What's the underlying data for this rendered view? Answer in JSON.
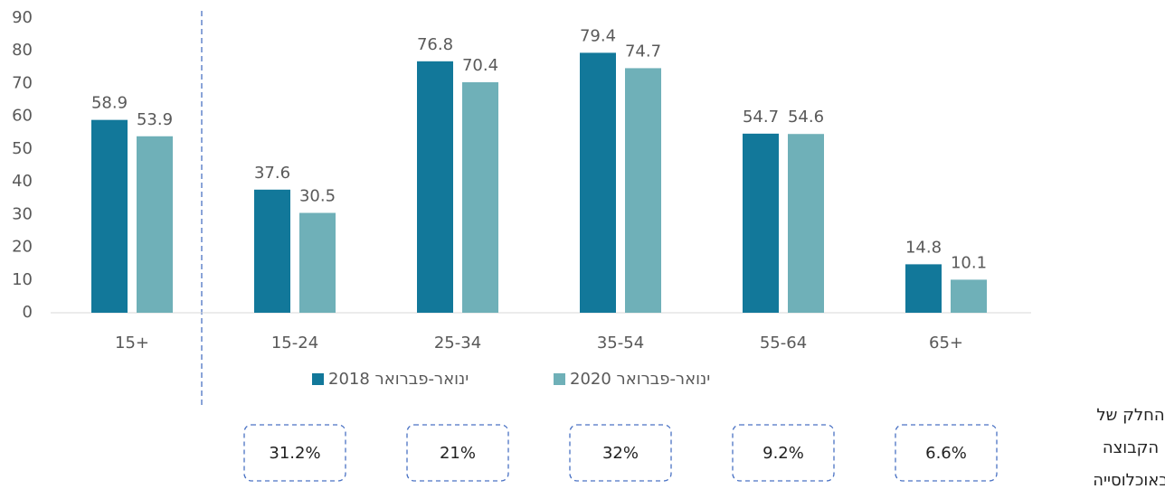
{
  "chart_data": {
    "type": "bar",
    "categories": [
      "15+",
      "15-24",
      "25-34",
      "35-54",
      "55-64",
      "65+"
    ],
    "series": [
      {
        "name": "ינואר-פברואר 2018",
        "color": "#12789a",
        "values": [
          58.9,
          37.6,
          76.8,
          79.4,
          54.7,
          14.8
        ]
      },
      {
        "name": "ינואר-פברואר 2020",
        "color": "#6fb0b8",
        "values": [
          53.9,
          30.5,
          70.4,
          74.7,
          54.6,
          10.1
        ]
      }
    ],
    "ylim": [
      0,
      90
    ],
    "yticks": [
      0,
      10,
      20,
      30,
      40,
      50,
      60,
      70,
      80,
      90
    ],
    "grid": false,
    "legend": "bottom",
    "population_share": {
      "label": [
        "החלק של",
        "הקבוצה",
        "באוכלוסייה"
      ],
      "values": [
        31.2,
        21,
        32,
        9.2,
        6.6
      ],
      "value_labels": [
        "31.2%",
        "21%",
        "32%",
        "9.2%",
        "6.6%"
      ]
    }
  }
}
